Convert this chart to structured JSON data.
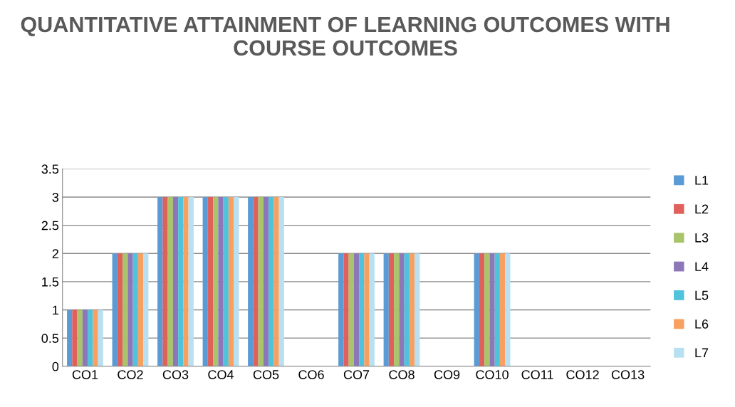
{
  "chart_data": {
    "type": "bar",
    "title": "QUANTITATIVE ATTAINMENT OF LEARNING OUTCOMES WITH COURSE OUTCOMES",
    "categories": [
      "CO1",
      "CO2",
      "CO3",
      "CO4",
      "CO5",
      "CO6",
      "CO7",
      "CO8",
      "CO9",
      "CO10",
      "CO11",
      "CO12",
      "CO13"
    ],
    "series": [
      {
        "name": "L1",
        "color": "#5b9bd5",
        "values": [
          1,
          2,
          3,
          3,
          3,
          null,
          2,
          2,
          null,
          2,
          null,
          null,
          null
        ]
      },
      {
        "name": "L2",
        "color": "#e0605c",
        "values": [
          1,
          2,
          3,
          3,
          3,
          null,
          2,
          2,
          null,
          2,
          null,
          null,
          null
        ]
      },
      {
        "name": "L3",
        "color": "#a9c46a",
        "values": [
          1,
          2,
          3,
          3,
          3,
          null,
          2,
          2,
          null,
          2,
          null,
          null,
          null
        ]
      },
      {
        "name": "L4",
        "color": "#8c78b8",
        "values": [
          1,
          2,
          3,
          3,
          3,
          null,
          2,
          2,
          null,
          2,
          null,
          null,
          null
        ]
      },
      {
        "name": "L5",
        "color": "#4fc3dc",
        "values": [
          1,
          2,
          3,
          3,
          3,
          null,
          2,
          2,
          null,
          2,
          null,
          null,
          null
        ]
      },
      {
        "name": "L6",
        "color": "#f7a062",
        "values": [
          1,
          2,
          3,
          3,
          3,
          null,
          2,
          2,
          null,
          2,
          null,
          null,
          null
        ]
      },
      {
        "name": "L7",
        "color": "#b8e0f0",
        "values": [
          1,
          2,
          3,
          3,
          3,
          null,
          2,
          2,
          null,
          2,
          null,
          null,
          null
        ]
      }
    ],
    "ylim": [
      0,
      3.5
    ],
    "yticks": [
      0,
      0.5,
      1,
      1.5,
      2,
      2.5,
      3,
      3.5
    ],
    "grid": "y",
    "legend": "right"
  }
}
